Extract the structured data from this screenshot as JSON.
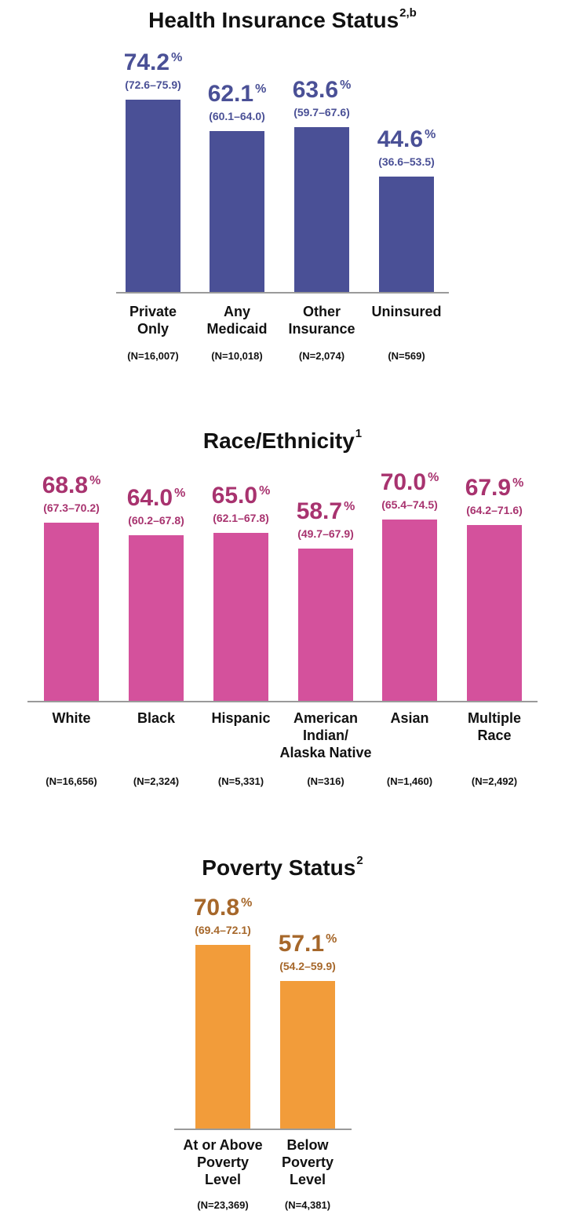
{
  "chart_data": [
    {
      "type": "bar",
      "title": "Health Insurance Status",
      "title_superscript": "2,b",
      "color": "#4a5096",
      "label_color": "#4a5096",
      "ylim": [
        0,
        100
      ],
      "categories": [
        "Private\nOnly",
        "Any\nMedicaid",
        "Other\nInsurance",
        "Uninsured"
      ],
      "values": [
        74.2,
        62.1,
        63.6,
        44.6
      ],
      "value_labels": [
        "74.2",
        "62.1",
        "63.6",
        "44.6"
      ],
      "percent_sign": "%",
      "ci_labels": [
        "(72.6–75.9)",
        "(60.1–64.0)",
        "(59.7–67.6)",
        "(36.6–53.5)"
      ],
      "n_labels": [
        "(N=16,007)",
        "(N=10,018)",
        "(N=2,074)",
        "(N=569)"
      ]
    },
    {
      "type": "bar",
      "title": "Race/Ethnicity",
      "title_superscript": "1",
      "color": "#d4519c",
      "label_color": "#a8336f",
      "ylim": [
        0,
        100
      ],
      "categories": [
        "White",
        "Black",
        "Hispanic",
        "American\nIndian/\nAlaska Native",
        "Asian",
        "Multiple\nRace"
      ],
      "values": [
        68.8,
        64.0,
        65.0,
        58.7,
        70.0,
        67.9
      ],
      "value_labels": [
        "68.8",
        "64.0",
        "65.0",
        "58.7",
        "70.0",
        "67.9"
      ],
      "percent_sign": "%",
      "ci_labels": [
        "(67.3–70.2)",
        "(60.2–67.8)",
        "(62.1–67.8)",
        "(49.7–67.9)",
        "(65.4–74.5)",
        "(64.2–71.6)"
      ],
      "n_labels": [
        "(N=16,656)",
        "(N=2,324)",
        "(N=5,331)",
        "(N=316)",
        "(N=1,460)",
        "(N=2,492)"
      ]
    },
    {
      "type": "bar",
      "title": "Poverty Status",
      "title_superscript": "2",
      "color": "#f29c3a",
      "label_color": "#a6672a",
      "ylim": [
        0,
        100
      ],
      "categories": [
        "At or Above\nPoverty\nLevel",
        "Below\nPoverty\nLevel"
      ],
      "values": [
        70.8,
        57.1
      ],
      "value_labels": [
        "70.8",
        "57.1"
      ],
      "percent_sign": "%",
      "ci_labels": [
        "(69.4–72.1)",
        "(54.2–59.9)"
      ],
      "n_labels": [
        "(N=23,369)",
        "(N=4,381)"
      ]
    }
  ]
}
